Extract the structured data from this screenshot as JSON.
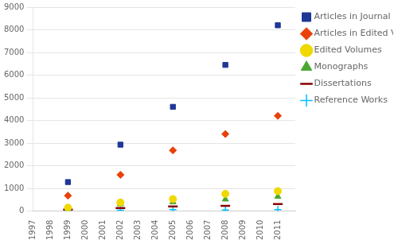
{
  "chart_data": {
    "type": "scatter",
    "x": [
      1999,
      2002,
      2005,
      2008,
      2011
    ],
    "series": [
      {
        "name": "Articles in Journal",
        "color": "#1F3896",
        "marker": "square",
        "values": [
          1280,
          2930,
          4600,
          6450,
          8200
        ]
      },
      {
        "name": "Articles in Edited Volume",
        "color": "#E8420A",
        "marker": "diamond",
        "values": [
          680,
          1600,
          2680,
          3400,
          4200
        ]
      },
      {
        "name": "Edited Volumes",
        "color": "#F0D800",
        "marker": "circle",
        "values": [
          150,
          380,
          530,
          760,
          880
        ]
      },
      {
        "name": "Monographs",
        "color": "#4AA830",
        "marker": "triangle",
        "values": [
          120,
          310,
          400,
          520,
          640
        ]
      },
      {
        "name": "Dissertations",
        "color": "#8B0000",
        "marker": "dash",
        "values": [
          60,
          130,
          200,
          230,
          310
        ]
      },
      {
        "name": "Reference Works",
        "color": "#00BFFF",
        "marker": "plus",
        "values": [
          20,
          40,
          60,
          50,
          60
        ]
      }
    ],
    "xlim": [
      1997,
      2012
    ],
    "xticks": [
      1997,
      1998,
      1999,
      2000,
      2001,
      2002,
      2003,
      2004,
      2005,
      2006,
      2007,
      2008,
      2009,
      2010,
      2011
    ],
    "ylim": [
      0,
      9000
    ],
    "yticks": [
      0,
      1000,
      2000,
      3000,
      4000,
      5000,
      6000,
      7000,
      8000,
      9000
    ],
    "grid": "y",
    "legend": "right"
  }
}
